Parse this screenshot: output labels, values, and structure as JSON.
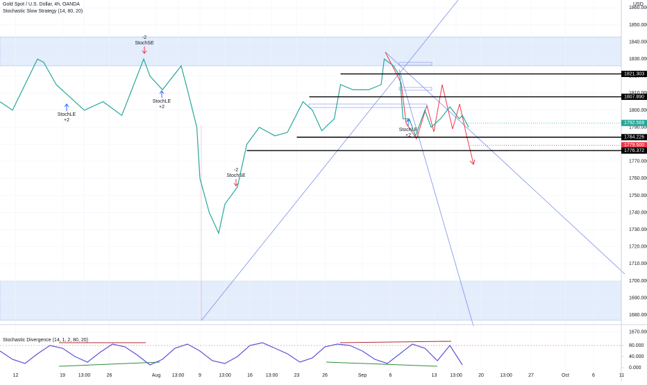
{
  "chart_data": [
    {
      "type": "line",
      "title": "Gold Spot / U.S. Dollar, 4h, OANDA",
      "subtitle": "Stochastic Slow Strategy (14, 80, 20)",
      "y_axis_label": "USD",
      "color": "#26a69a",
      "x": [
        0,
        4,
        12,
        14,
        18,
        21,
        27,
        33,
        39,
        46,
        48,
        52,
        58,
        60,
        63,
        64,
        67,
        70,
        72,
        76,
        79,
        83,
        88,
        92,
        97,
        100,
        103,
        107,
        109,
        113,
        118,
        122,
        123,
        126,
        128,
        129,
        131,
        133,
        136,
        138,
        141,
        144,
        147,
        148,
        150
      ],
      "values": [
        1805,
        1800,
        1830,
        1828,
        1815,
        1810,
        1800,
        1805,
        1797,
        1830,
        1820,
        1812,
        1826,
        1812,
        1790,
        1760,
        1740,
        1728,
        1745,
        1755,
        1780,
        1790,
        1785,
        1787,
        1805,
        1800,
        1788,
        1795,
        1815,
        1812,
        1812,
        1815,
        1830,
        1826,
        1820,
        1795,
        1795,
        1785,
        1800,
        1790,
        1795,
        1802,
        1795,
        1797,
        1790
      ],
      "xlim": [
        0,
        200
      ],
      "ylim": [
        1669.5,
        1864.6
      ],
      "xticks": [
        {
          "value": 5,
          "label": "12"
        },
        {
          "value": 20,
          "label": "19"
        },
        {
          "value": 27,
          "label": "13:00"
        },
        {
          "value": 35,
          "label": "26"
        },
        {
          "value": 50,
          "label": "Aug"
        },
        {
          "value": 57,
          "label": "13:00"
        },
        {
          "value": 64,
          "label": "9"
        },
        {
          "value": 72,
          "label": "13:00"
        },
        {
          "value": 80,
          "label": "16"
        },
        {
          "value": 87,
          "label": "13:00"
        },
        {
          "value": 95,
          "label": "23"
        },
        {
          "value": 104,
          "label": "26"
        },
        {
          "value": 116,
          "label": "Sep"
        },
        {
          "value": 125,
          "label": "6"
        },
        {
          "value": 139,
          "label": "13"
        },
        {
          "value": 146,
          "label": "13:00"
        },
        {
          "value": 154,
          "label": "20"
        },
        {
          "value": 162,
          "label": "13:00"
        },
        {
          "value": 170,
          "label": "27"
        },
        {
          "value": 181,
          "label": "Oct"
        },
        {
          "value": 190,
          "label": "6"
        },
        {
          "value": 199,
          "label": "11"
        }
      ],
      "yticks": [
        {
          "value": 1670,
          "label": "1670.000"
        },
        {
          "value": 1680,
          "label": "1680.000"
        },
        {
          "value": 1690,
          "label": "1690.000"
        },
        {
          "value": 1700,
          "label": "1700.000"
        },
        {
          "value": 1710,
          "label": "1710.000"
        },
        {
          "value": 1720,
          "label": "1720.000"
        },
        {
          "value": 1730,
          "label": "1730.000"
        },
        {
          "value": 1740,
          "label": "1740.000"
        },
        {
          "value": 1750,
          "label": "1750.000"
        },
        {
          "value": 1760,
          "label": "1760.000"
        },
        {
          "value": 1770,
          "label": "1770.000"
        },
        {
          "value": 1780,
          "label": "1780.000"
        },
        {
          "value": 1790,
          "label": "1790.000"
        },
        {
          "value": 1800,
          "label": "1800.000"
        },
        {
          "value": 1810,
          "label": "1810.000"
        },
        {
          "value": 1820,
          "label": "1820.000"
        },
        {
          "value": 1830,
          "label": "1830.000"
        },
        {
          "value": 1840,
          "label": "1840.000"
        },
        {
          "value": 1850,
          "label": "1850.000"
        },
        {
          "value": 1860,
          "label": "1860.000"
        }
      ],
      "grid": true,
      "zones": [
        {
          "range": [
            1826,
            1843
          ]
        },
        {
          "range": [
            1677,
            1700
          ]
        }
      ],
      "levels": [
        {
          "value": 1821.303,
          "label": "1821.303",
          "start_x": 109,
          "color": "#000000"
        },
        {
          "value": 1807.89,
          "label": "1807.890",
          "start_x": 99,
          "color": "#000000"
        },
        {
          "value": 1792.569,
          "label": "1792.569",
          "start_x": 148,
          "color": "#26a69a"
        },
        {
          "value": 1784.226,
          "label": "1784.226",
          "start_x": 95,
          "color": "#000000"
        },
        {
          "value": 1779.5,
          "label": "1779.500",
          "start_x": 150,
          "color": "#f23645"
        },
        {
          "value": 1776.372,
          "label": "1776.372",
          "start_x": 79,
          "color": "#000000"
        }
      ],
      "annotations": [
        [
          "-2",
          "StochSE"
        ],
        [
          "StochLE",
          "+2"
        ],
        [
          "StochLE",
          "+2"
        ],
        [
          "-2",
          "StochSE"
        ],
        [
          "StochLE",
          "+2"
        ]
      ]
    },
    {
      "type": "line",
      "title": "Stochastic Divergence (14, 1, 2, 80, 20)",
      "color": "#5b4fd6",
      "x": [
        0,
        4,
        8,
        12,
        16,
        20,
        24,
        28,
        32,
        36,
        40,
        44,
        48,
        52,
        56,
        60,
        64,
        68,
        72,
        76,
        80,
        84,
        88,
        92,
        96,
        100,
        104,
        108,
        112,
        116,
        120,
        124,
        128,
        132,
        136,
        140,
        144,
        148
      ],
      "values": [
        60,
        30,
        15,
        50,
        80,
        70,
        40,
        20,
        55,
        85,
        75,
        45,
        10,
        30,
        70,
        85,
        60,
        25,
        15,
        40,
        80,
        90,
        70,
        50,
        20,
        35,
        75,
        85,
        80,
        60,
        30,
        15,
        50,
        85,
        70,
        25,
        80,
        10
      ],
      "xlim": [
        0,
        200
      ],
      "ylim": [
        0,
        100
      ],
      "yticks": [
        {
          "value": 0,
          "label": "0.000"
        },
        {
          "value": 40,
          "label": "40.000"
        },
        {
          "value": 80,
          "label": "80.000"
        }
      ]
    }
  ]
}
